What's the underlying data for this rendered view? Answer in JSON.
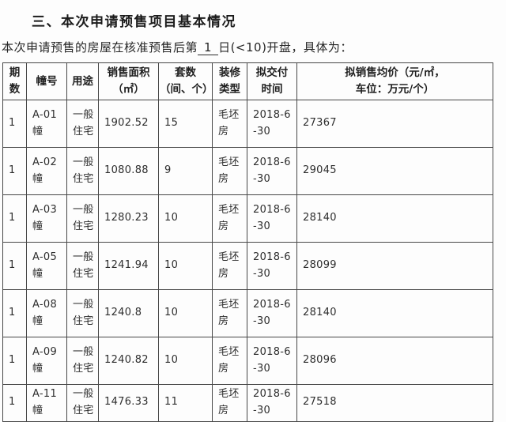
{
  "page": {
    "title": "三、本次申请预售项目基本情况",
    "intro": {
      "prefix": "本次申请预售的房屋在核准预售后第",
      "day": "1",
      "suffix": "日(<10)开盘，具体为："
    }
  },
  "table": {
    "column_keys": [
      "phase",
      "building",
      "usage",
      "area",
      "units",
      "decoration",
      "delivery",
      "price"
    ],
    "headers": [
      "期\n数",
      "幢号",
      "用途",
      "销售面积\n（㎡）",
      "套数\n（间、个）",
      "装修\n类型",
      "拟交付\n时间",
      "拟销售均价（元/㎡，\n车位：万元/个）"
    ],
    "rows": [
      [
        "1",
        "A-01幢",
        "一般住宅",
        "1902.52",
        "15",
        "毛坯房",
        "2018-6-30",
        "27367"
      ],
      [
        "1",
        "A-02幢",
        "一般住宅",
        "1080.88",
        "9",
        "毛坯房",
        "2018-6-30",
        "29045"
      ],
      [
        "1",
        "A-03幢",
        "一般住宅",
        "1280.23",
        "10",
        "毛坯房",
        "2018-6-30",
        "28140"
      ],
      [
        "1",
        "A-05幢",
        "一般住宅",
        "1241.94",
        "10",
        "毛坯房",
        "2018-6-30",
        "28099"
      ],
      [
        "1",
        "A-08幢",
        "一般住宅",
        "1240.8",
        "10",
        "毛坯房",
        "2018-6-30",
        "28140"
      ],
      [
        "1",
        "A-09幢",
        "一般住宅",
        "1240.82",
        "10",
        "毛坯房",
        "2018-6-30",
        "28096"
      ],
      [
        "1",
        "A-11幢",
        "一般住宅",
        "1476.33",
        "11",
        "毛坯房",
        "2018-6-30",
        "27518"
      ]
    ]
  }
}
